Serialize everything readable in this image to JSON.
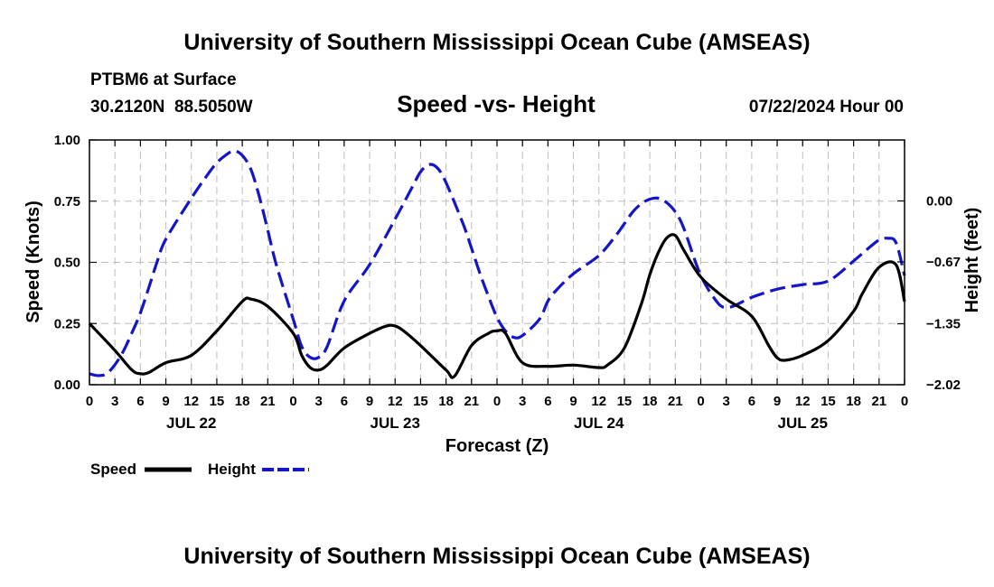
{
  "page": {
    "title": "University of Southern Mississippi Ocean Cube (AMSEAS)",
    "footer_title": "University of Southern Mississippi Ocean Cube (AMSEAS)",
    "station": "PTBM6 at Surface",
    "coords": "30.2120N  88.5050W",
    "date": "07/22/2024 Hour 00"
  },
  "chart_data": {
    "type": "line",
    "title": "Speed -vs- Height",
    "xlabel": "Forecast (Z)",
    "ylabel": "Speed (Knots)",
    "ylabel_right": "Height (feet)",
    "x_range": [
      0,
      96
    ],
    "ylim": [
      0,
      1.0
    ],
    "ylim_right": [
      -2.02,
      0.67
    ],
    "y_ticks": [
      0.0,
      0.25,
      0.5,
      0.75,
      1.0
    ],
    "y_tick_labels": [
      "0.00",
      "0.25",
      "0.50",
      "0.75",
      "1.00"
    ],
    "y_right_ticks": [
      -2.02,
      -1.35,
      -0.67,
      0.0
    ],
    "y_right_tick_labels": [
      "−2.02",
      "−1.35",
      "−0.67",
      "0.00"
    ],
    "x_tick_labels": [
      "0",
      "3",
      "6",
      "9",
      "12",
      "15",
      "18",
      "21",
      "0",
      "3",
      "6",
      "9",
      "12",
      "15",
      "18",
      "21",
      "0",
      "3",
      "6",
      "9",
      "12",
      "15",
      "18",
      "21",
      "0",
      "3",
      "6",
      "9",
      "12",
      "15",
      "18",
      "21",
      "0"
    ],
    "day_labels": [
      "JUL 22",
      "JUL 23",
      "JUL 24",
      "JUL 25"
    ],
    "legend": {
      "speed": "Speed",
      "height": "Height"
    },
    "series": [
      {
        "name": "Speed",
        "axis": "left",
        "color": "#000000",
        "style": "solid",
        "x": [
          0,
          3,
          5,
          6,
          7,
          9,
          12,
          15,
          18,
          19,
          21,
          24,
          25,
          26,
          27,
          28,
          30,
          33,
          35,
          36,
          37,
          39,
          42,
          43,
          45,
          47,
          48,
          49,
          51,
          54,
          57,
          60,
          61,
          63,
          65,
          66,
          67,
          68,
          69,
          70,
          72,
          75,
          78,
          80,
          81,
          82,
          84,
          87,
          90,
          91,
          93,
          95,
          96
        ],
        "values": [
          0.25,
          0.14,
          0.06,
          0.045,
          0.05,
          0.09,
          0.12,
          0.22,
          0.34,
          0.35,
          0.32,
          0.21,
          0.12,
          0.07,
          0.06,
          0.08,
          0.15,
          0.21,
          0.24,
          0.24,
          0.22,
          0.16,
          0.06,
          0.035,
          0.16,
          0.21,
          0.22,
          0.21,
          0.09,
          0.075,
          0.08,
          0.07,
          0.08,
          0.15,
          0.33,
          0.45,
          0.54,
          0.6,
          0.61,
          0.55,
          0.44,
          0.35,
          0.28,
          0.16,
          0.11,
          0.1,
          0.12,
          0.18,
          0.3,
          0.37,
          0.48,
          0.49,
          0.34
        ]
      },
      {
        "name": "Height",
        "axis": "right",
        "color": "#1515c8",
        "style": "dashed",
        "x": [
          0,
          1,
          2,
          3,
          4,
          5,
          6,
          7,
          8,
          9,
          12,
          14,
          15,
          16,
          17,
          18,
          19,
          20,
          21,
          22,
          24,
          25,
          26,
          27,
          28,
          30,
          33,
          36,
          38,
          39,
          40,
          41,
          42,
          44,
          45,
          46,
          47,
          48,
          49,
          50,
          51,
          53,
          54,
          55,
          57,
          60,
          62,
          63,
          64,
          65,
          66,
          67,
          68,
          69,
          70,
          72,
          74,
          75,
          76,
          78,
          81,
          84,
          87,
          90,
          92,
          93,
          94,
          95,
          96
        ],
        "values": [
          -1.9,
          -1.92,
          -1.9,
          -1.8,
          -1.65,
          -1.45,
          -1.23,
          -0.95,
          -0.66,
          -0.42,
          0.03,
          0.3,
          0.42,
          0.5,
          0.55,
          0.5,
          0.35,
          0.05,
          -0.32,
          -0.7,
          -1.3,
          -1.6,
          -1.72,
          -1.72,
          -1.6,
          -1.1,
          -0.7,
          -0.2,
          0.15,
          0.32,
          0.4,
          0.36,
          0.2,
          -0.25,
          -0.52,
          -0.8,
          -1.05,
          -1.28,
          -1.43,
          -1.5,
          -1.48,
          -1.3,
          -1.1,
          -0.98,
          -0.8,
          -0.6,
          -0.38,
          -0.25,
          -0.12,
          -0.03,
          0.02,
          0.03,
          -0.02,
          -0.12,
          -0.3,
          -0.82,
          -1.12,
          -1.17,
          -1.15,
          -1.06,
          -0.97,
          -0.92,
          -0.88,
          -0.66,
          -0.5,
          -0.43,
          -0.41,
          -0.46,
          -0.82
        ]
      }
    ]
  }
}
